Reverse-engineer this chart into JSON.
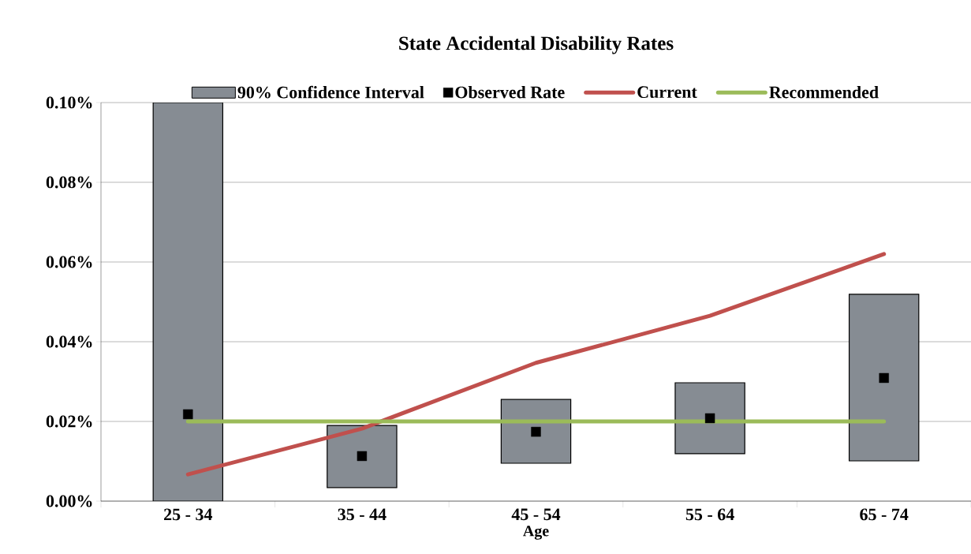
{
  "chart_data": {
    "type": "bar",
    "title": "State Accidental Disability Rates",
    "xlabel": "Age",
    "categories": [
      "25 - 34",
      "35 - 44",
      "45 - 54",
      "55 - 64",
      "65 - 74"
    ],
    "series": [
      {
        "name": "90% Confidence Interval",
        "color": "#868c93",
        "base": [
          0,
          0.0034,
          0.0095,
          0.0119,
          0.0101
        ],
        "values": [
          0.1,
          0.0156,
          0.016,
          0.0178,
          0.0418
        ]
      },
      {
        "name": "Observed Rate",
        "type": "scatter",
        "color": "#000000",
        "marker": "square",
        "values": [
          0.0218,
          0.0113,
          0.0174,
          0.0208,
          0.0309
        ]
      },
      {
        "name": "Current",
        "type": "line",
        "color": "#c0504d",
        "values": [
          0.0067,
          0.0182,
          0.0347,
          0.0465,
          0.062
        ]
      },
      {
        "name": "Recommended",
        "type": "line",
        "color": "#9bbb59",
        "values": [
          0.02,
          0.02,
          0.02,
          0.02,
          0.02
        ]
      }
    ],
    "ylim": [
      0,
      0.1
    ],
    "yticks": [
      {
        "value": 0,
        "label": "0.00%"
      },
      {
        "value": 0.02,
        "label": "0.02%"
      },
      {
        "value": 0.04,
        "label": "0.04%"
      },
      {
        "value": 0.06,
        "label": "0.06%"
      },
      {
        "value": 0.08,
        "label": "0.08%"
      },
      {
        "value": 0.1,
        "label": "0.10%"
      }
    ],
    "grid": "y",
    "legend": "top"
  }
}
